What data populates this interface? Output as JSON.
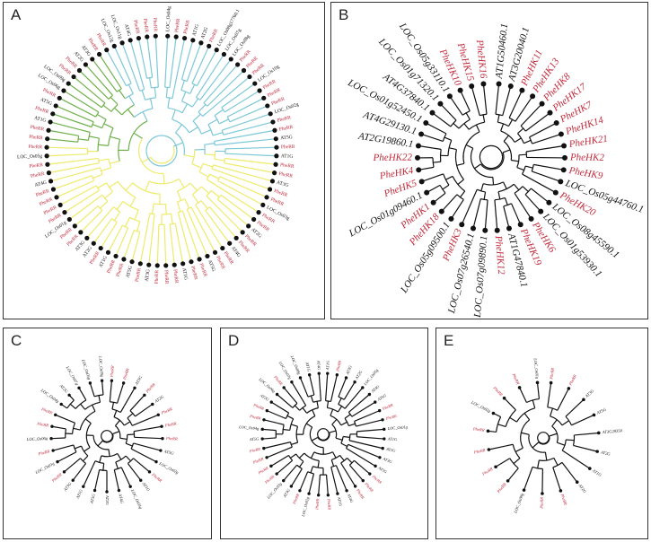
{
  "colors": {
    "black": "#111111",
    "red": "#c0283a",
    "blue": "#7cc8d8",
    "green": "#6fb04a",
    "yellow": "#eeea6a"
  },
  "panels": [
    {
      "label": "A",
      "leaf_labels": false,
      "leaves": [
        {
          "t": "LOC_Os04g",
          "c": "black"
        },
        {
          "t": "PheRR",
          "c": "red"
        },
        {
          "t": "PheRR",
          "c": "red"
        },
        {
          "t": "AT1G",
          "c": "black"
        },
        {
          "t": "AT2G",
          "c": "black"
        },
        {
          "t": "PheRR",
          "c": "red"
        },
        {
          "t": "LOC_Os08g17760.1",
          "c": "black"
        },
        {
          "t": "LOC_Os07g",
          "c": "black"
        },
        {
          "t": "LOC_Os08g",
          "c": "black"
        },
        {
          "t": "PheRR",
          "c": "red"
        },
        {
          "t": "PheRR",
          "c": "red"
        },
        {
          "t": "PheRR",
          "c": "red"
        },
        {
          "t": "LOC_Os10g",
          "c": "black"
        },
        {
          "t": "PheRR",
          "c": "red"
        },
        {
          "t": "PheRR",
          "c": "red"
        },
        {
          "t": "PheRR",
          "c": "red"
        },
        {
          "t": "LOC_Os02g",
          "c": "black"
        },
        {
          "t": "PheRR",
          "c": "red"
        },
        {
          "t": "PheRR",
          "c": "red"
        },
        {
          "t": "AT5G",
          "c": "black"
        },
        {
          "t": "PheRR",
          "c": "red"
        },
        {
          "t": "AT1G",
          "c": "black"
        },
        {
          "t": "PheRR",
          "c": "red"
        },
        {
          "t": "PheRR",
          "c": "red"
        },
        {
          "t": "AT3G",
          "c": "black"
        },
        {
          "t": "PheRR",
          "c": "red"
        },
        {
          "t": "PheRR",
          "c": "red"
        },
        {
          "t": "LOC_Os03g",
          "c": "black"
        },
        {
          "t": "PheRR",
          "c": "red"
        },
        {
          "t": "PheRR",
          "c": "red"
        },
        {
          "t": "AT2G",
          "c": "black"
        },
        {
          "t": "PheRR",
          "c": "red"
        },
        {
          "t": "PheRR",
          "c": "red"
        },
        {
          "t": "AT4G",
          "c": "black"
        },
        {
          "t": "PheRR",
          "c": "red"
        },
        {
          "t": "PheRR",
          "c": "red"
        },
        {
          "t": "AT5G",
          "c": "black"
        },
        {
          "t": "PheRR",
          "c": "red"
        },
        {
          "t": "PheRR",
          "c": "red"
        },
        {
          "t": "AT1G",
          "c": "black"
        },
        {
          "t": "PheRR",
          "c": "red"
        },
        {
          "t": "PheRR",
          "c": "red"
        },
        {
          "t": "PheRR",
          "c": "red"
        },
        {
          "t": "AT3G",
          "c": "black"
        },
        {
          "t": "PheRR",
          "c": "red"
        },
        {
          "t": "AT5G",
          "c": "black"
        },
        {
          "t": "PheRR",
          "c": "red"
        },
        {
          "t": "PheRR",
          "c": "red"
        },
        {
          "t": "AT1G",
          "c": "black"
        },
        {
          "t": "PheRR",
          "c": "red"
        },
        {
          "t": "AT2G",
          "c": "black"
        },
        {
          "t": "AT3G",
          "c": "black"
        },
        {
          "t": "PheRR",
          "c": "red"
        },
        {
          "t": "PheRR",
          "c": "red"
        },
        {
          "t": "LOC_Os01g",
          "c": "black"
        },
        {
          "t": "PheRR",
          "c": "red"
        },
        {
          "t": "PheRR",
          "c": "red"
        },
        {
          "t": "PheRR",
          "c": "red"
        },
        {
          "t": "PheRR",
          "c": "red"
        },
        {
          "t": "AT4G",
          "c": "black"
        },
        {
          "t": "PheRR",
          "c": "red"
        },
        {
          "t": "PheRR",
          "c": "red"
        },
        {
          "t": "LOC_Os05g",
          "c": "black"
        },
        {
          "t": "PheRR",
          "c": "red"
        },
        {
          "t": "PheRR",
          "c": "red"
        },
        {
          "t": "PheRR",
          "c": "red"
        },
        {
          "t": "AT1G",
          "c": "black"
        },
        {
          "t": "PheRR",
          "c": "red"
        },
        {
          "t": "AT5G",
          "c": "black"
        },
        {
          "t": "PheRR",
          "c": "red"
        },
        {
          "t": "LOC_Os06g",
          "c": "black"
        },
        {
          "t": "LOC_Os09g",
          "c": "black"
        },
        {
          "t": "PheRR",
          "c": "red"
        },
        {
          "t": "PheRR",
          "c": "red"
        },
        {
          "t": "AT2G",
          "c": "black"
        },
        {
          "t": "AT3G",
          "c": "black"
        },
        {
          "t": "PheRR",
          "c": "red"
        },
        {
          "t": "PheRR",
          "c": "red"
        },
        {
          "t": "LOC_Os12g",
          "c": "black"
        },
        {
          "t": "LOC_Os11g",
          "c": "black"
        },
        {
          "t": "AT4G",
          "c": "black"
        },
        {
          "t": "PheRR",
          "c": "red"
        },
        {
          "t": "PheRR",
          "c": "red"
        },
        {
          "t": "PheRR",
          "c": "red"
        }
      ]
    },
    {
      "label": "B",
      "leaf_labels": true,
      "leaves": [
        {
          "t": "AT1G50460.1",
          "c": "black"
        },
        {
          "t": "AT3G20040.1",
          "c": "black"
        },
        {
          "t": "PheHK11",
          "c": "red"
        },
        {
          "t": "PheHK13",
          "c": "red"
        },
        {
          "t": "PheHK8",
          "c": "red"
        },
        {
          "t": "PheHK17",
          "c": "red"
        },
        {
          "t": "PheHK7",
          "c": "red"
        },
        {
          "t": "PheHK14",
          "c": "red"
        },
        {
          "t": "PheHK21",
          "c": "red"
        },
        {
          "t": "PheHK2",
          "c": "red"
        },
        {
          "t": "PheHK9",
          "c": "red"
        },
        {
          "t": "LOC_Os05g44760.1",
          "c": "black"
        },
        {
          "t": "PheHK20",
          "c": "red"
        },
        {
          "t": "LOC_Os08g45590.1",
          "c": "black"
        },
        {
          "t": "LOC_Os01g53930.1",
          "c": "black"
        },
        {
          "t": "PheHK6",
          "c": "red"
        },
        {
          "t": "PheHK19",
          "c": "red"
        },
        {
          "t": "AT1G47840.1",
          "c": "black"
        },
        {
          "t": "PheHK12",
          "c": "red"
        },
        {
          "t": "LOC_Os07g09890.1",
          "c": "black"
        },
        {
          "t": "LOC_Os07g26540.1",
          "c": "black"
        },
        {
          "t": "PheHK3",
          "c": "red"
        },
        {
          "t": "LOC_Os05g09500.1",
          "c": "black"
        },
        {
          "t": "PheHK18",
          "c": "red"
        },
        {
          "t": "PheHK1",
          "c": "red"
        },
        {
          "t": "LOC_Os01g09460.1",
          "c": "black"
        },
        {
          "t": "PheHK5",
          "c": "red"
        },
        {
          "t": "PheHK4",
          "c": "red"
        },
        {
          "t": "PheHK22",
          "c": "red"
        },
        {
          "t": "AT2G19860.1",
          "c": "black"
        },
        {
          "t": "AT4G29130.1",
          "c": "black"
        },
        {
          "t": "LOC_Os01g52450.1",
          "c": "black"
        },
        {
          "t": "AT4G37840.1",
          "c": "black"
        },
        {
          "t": "LOC_Os01g71320.1",
          "c": "black"
        },
        {
          "t": "LOC_Os05g33110.1",
          "c": "black"
        },
        {
          "t": "PheHK10",
          "c": "red"
        },
        {
          "t": "PheHK15",
          "c": "red"
        },
        {
          "t": "PheHK16",
          "c": "red"
        }
      ]
    },
    {
      "label": "C",
      "leaf_labels": false,
      "leaves": [
        {
          "t": "PheRR",
          "c": "red"
        },
        {
          "t": "PheRR",
          "c": "red"
        },
        {
          "t": "AT3G",
          "c": "black"
        },
        {
          "t": "PheRR",
          "c": "red"
        },
        {
          "t": "AT2G",
          "c": "black"
        },
        {
          "t": "PheRR",
          "c": "red"
        },
        {
          "t": "PheRR",
          "c": "red"
        },
        {
          "t": "PheRR",
          "c": "red"
        },
        {
          "t": "AT5G",
          "c": "black"
        },
        {
          "t": "LOC_Os02g",
          "c": "black"
        },
        {
          "t": "PheRR",
          "c": "red"
        },
        {
          "t": "AT1G",
          "c": "black"
        },
        {
          "t": "LOC_Os03g",
          "c": "black"
        },
        {
          "t": "AT4G",
          "c": "black"
        },
        {
          "t": "AT2G",
          "c": "black"
        },
        {
          "t": "AT5G",
          "c": "black"
        },
        {
          "t": "AT1G",
          "c": "black"
        },
        {
          "t": "AT3G",
          "c": "black"
        },
        {
          "t": "PheRR",
          "c": "red"
        },
        {
          "t": "LOC_Os01g",
          "c": "black"
        },
        {
          "t": "PheRR",
          "c": "red"
        },
        {
          "t": "LOC_Os06g",
          "c": "black"
        },
        {
          "t": "PheRR",
          "c": "red"
        },
        {
          "t": "PheRR",
          "c": "red"
        },
        {
          "t": "LOC_Os04g",
          "c": "black"
        },
        {
          "t": "AT2G",
          "c": "black"
        },
        {
          "t": "LOC_Os07g",
          "c": "black"
        },
        {
          "t": "LOC_Os05g",
          "c": "black"
        },
        {
          "t": "LOC_Os09g",
          "c": "black"
        }
      ]
    },
    {
      "label": "D",
      "leaf_labels": false,
      "leaves": [
        {
          "t": "AT1G",
          "c": "black"
        },
        {
          "t": "PheRR",
          "c": "red"
        },
        {
          "t": "AT3G",
          "c": "black"
        },
        {
          "t": "AT2G",
          "c": "black"
        },
        {
          "t": "LOC_Os05g",
          "c": "black"
        },
        {
          "t": "AT4G",
          "c": "black"
        },
        {
          "t": "AT5G",
          "c": "black"
        },
        {
          "t": "PheRR",
          "c": "red"
        },
        {
          "t": "PheRR",
          "c": "red"
        },
        {
          "t": "LOC_Os01g",
          "c": "black"
        },
        {
          "t": "AT1G",
          "c": "black"
        },
        {
          "t": "AT2G",
          "c": "black"
        },
        {
          "t": "AT3G",
          "c": "black"
        },
        {
          "t": "AT5G",
          "c": "black"
        },
        {
          "t": "PheRR",
          "c": "red"
        },
        {
          "t": "PheRR",
          "c": "red"
        },
        {
          "t": "PheRR",
          "c": "red"
        },
        {
          "t": "AT4G",
          "c": "black"
        },
        {
          "t": "AT1G",
          "c": "black"
        },
        {
          "t": "PheRR",
          "c": "red"
        },
        {
          "t": "PheRR",
          "c": "red"
        },
        {
          "t": "LOC_Os02g",
          "c": "black"
        },
        {
          "t": "PheRR",
          "c": "red"
        },
        {
          "t": "AT3G",
          "c": "black"
        },
        {
          "t": "LOC_Os03g",
          "c": "black"
        },
        {
          "t": "PheRR",
          "c": "red"
        },
        {
          "t": "PheRR",
          "c": "red"
        },
        {
          "t": "PheRR",
          "c": "red"
        },
        {
          "t": "PheRR",
          "c": "red"
        },
        {
          "t": "AT5G",
          "c": "black"
        },
        {
          "t": "LOC_Os04g",
          "c": "black"
        },
        {
          "t": "PheRR",
          "c": "red"
        },
        {
          "t": "PheRR",
          "c": "red"
        },
        {
          "t": "AT2G",
          "c": "black"
        },
        {
          "t": "LOC_Os06g",
          "c": "black"
        },
        {
          "t": "PheRR",
          "c": "red"
        },
        {
          "t": "LOC_Os07g",
          "c": "black"
        },
        {
          "t": "LOC_Os08g",
          "c": "black"
        },
        {
          "t": "AT1G",
          "c": "black"
        },
        {
          "t": "AT4G",
          "c": "black"
        }
      ]
    },
    {
      "label": "E",
      "leaf_labels": false,
      "leaves": [
        {
          "t": "PheRR",
          "c": "red"
        },
        {
          "t": "PheRR",
          "c": "red"
        },
        {
          "t": "AT3G",
          "c": "black"
        },
        {
          "t": "AT5G",
          "c": "black"
        },
        {
          "t": "AT3G29350",
          "c": "black"
        },
        {
          "t": "AT2G",
          "c": "black"
        },
        {
          "t": "AT1G",
          "c": "black"
        },
        {
          "t": "AT2G",
          "c": "black"
        },
        {
          "t": "PheRR",
          "c": "red"
        },
        {
          "t": "PheRR",
          "c": "red"
        },
        {
          "t": "LOC_Os08g",
          "c": "black"
        },
        {
          "t": "PheRR",
          "c": "red"
        },
        {
          "t": "PheRR",
          "c": "red"
        },
        {
          "t": "PheRR",
          "c": "red"
        },
        {
          "t": "PheRR",
          "c": "red"
        },
        {
          "t": "LOC_Os02g",
          "c": "black"
        },
        {
          "t": "PheRR",
          "c": "red"
        },
        {
          "t": "PheRR",
          "c": "red"
        },
        {
          "t": "LOC_Os01g",
          "c": "black"
        }
      ]
    }
  ]
}
